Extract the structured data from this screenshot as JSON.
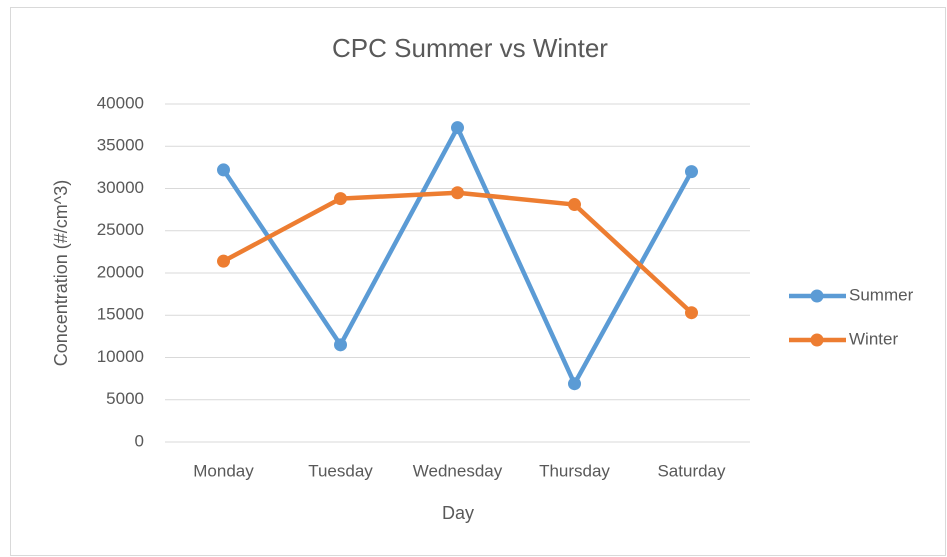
{
  "chart_data": {
    "type": "line",
    "title": "CPC Summer vs Winter",
    "x_label": "Day",
    "y_label": "Concentration (#/cm^3)",
    "categories": [
      "Monday",
      "Tuesday",
      "Wednesday",
      "Thursday",
      "Saturday"
    ],
    "series": [
      {
        "name": "Summer",
        "color": "#5b9bd5",
        "values": [
          32200,
          11500,
          37200,
          6900,
          32000
        ]
      },
      {
        "name": "Winter",
        "color": "#ed7d31",
        "values": [
          21400,
          28800,
          29500,
          28100,
          15300
        ]
      }
    ],
    "ylim": [
      0,
      40000
    ],
    "yticks": [
      0,
      5000,
      10000,
      15000,
      20000,
      25000,
      30000,
      35000,
      40000
    ],
    "grid": true,
    "legend": "right"
  }
}
